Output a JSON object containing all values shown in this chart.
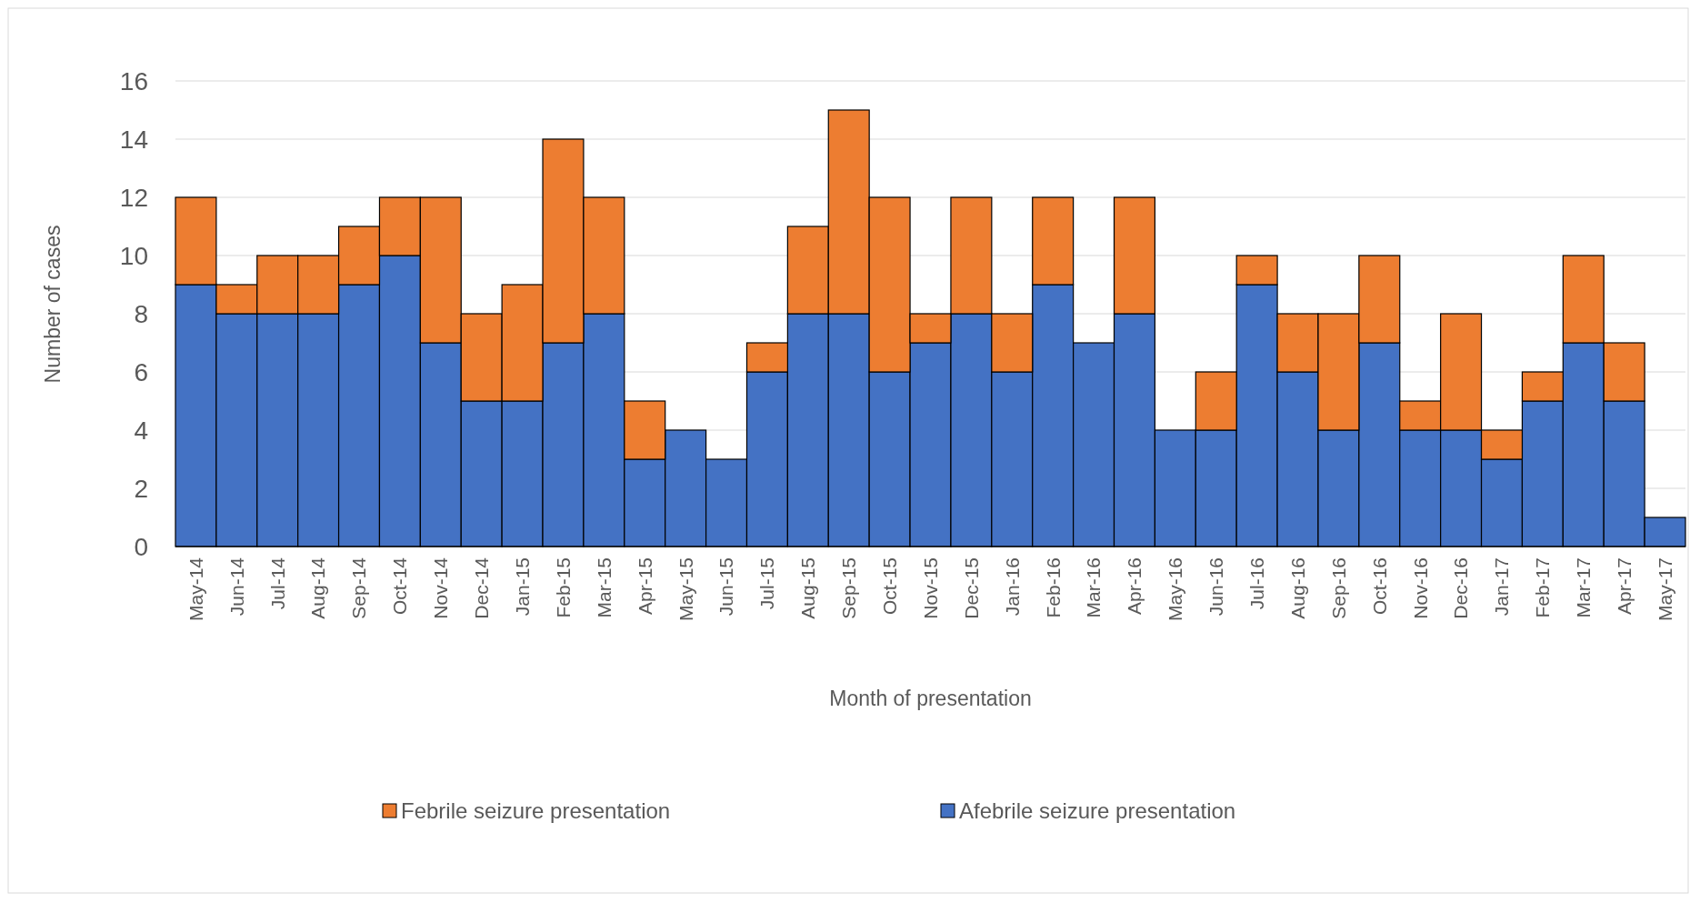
{
  "chart_data": {
    "type": "bar",
    "stacked": true,
    "xlabel": "Month of presentation",
    "ylabel": "Number of cases",
    "categories": [
      "May-14",
      "Jun-14",
      "Jul-14",
      "Aug-14",
      "Sep-14",
      "Oct-14",
      "Nov-14",
      "Dec-14",
      "Jan-15",
      "Feb-15",
      "Mar-15",
      "Apr-15",
      "May-15",
      "Jun-15",
      "Jul-15",
      "Aug-15",
      "Sep-15",
      "Oct-15",
      "Nov-15",
      "Dec-15",
      "Jan-16",
      "Feb-16",
      "Mar-16",
      "Apr-16",
      "May-16",
      "Jun-16",
      "Jul-16",
      "Aug-16",
      "Sep-16",
      "Oct-16",
      "Nov-16",
      "Dec-16",
      "Jan-17",
      "Feb-17",
      "Mar-17",
      "Apr-17",
      "May-17"
    ],
    "series": [
      {
        "name": "Afebrile seizure presentation",
        "color": "#4472c4",
        "values": [
          9,
          8,
          8,
          8,
          9,
          10,
          7,
          5,
          5,
          7,
          8,
          3,
          4,
          3,
          6,
          8,
          8,
          6,
          7,
          8,
          6,
          9,
          7,
          8,
          4,
          4,
          9,
          6,
          4,
          7,
          4,
          4,
          3,
          5,
          7,
          5,
          1
        ]
      },
      {
        "name": "Febrile seizure presentation",
        "color": "#ed7d31",
        "values": [
          3,
          1,
          2,
          2,
          2,
          2,
          5,
          3,
          4,
          7,
          4,
          2,
          0,
          0,
          1,
          3,
          7,
          6,
          1,
          4,
          2,
          3,
          0,
          4,
          0,
          2,
          1,
          2,
          4,
          3,
          1,
          4,
          1,
          1,
          3,
          2,
          0
        ]
      }
    ],
    "ylim": [
      0,
      16
    ],
    "yticks": [
      0,
      2,
      4,
      6,
      8,
      10,
      12,
      14,
      16
    ],
    "grid": "y",
    "legend": "bottom"
  }
}
